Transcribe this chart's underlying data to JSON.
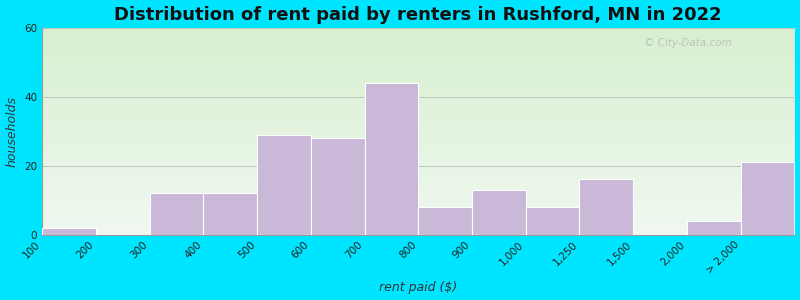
{
  "title": "Distribution of rent paid by renters in Rushford, MN in 2022",
  "xlabel": "rent paid ($)",
  "ylabel": "households",
  "tick_labels": [
    "100",
    "200",
    "300",
    "400",
    "500",
    "600",
    "700",
    "800",
    "900",
    "1,000",
    "1,250",
    "1,500",
    "2,000",
    "> 2,000"
  ],
  "bar_values": [
    2,
    0,
    12,
    12,
    29,
    28,
    44,
    8,
    13,
    8,
    16,
    0,
    4,
    21
  ],
  "bar_color": "#c9b8d8",
  "bar_edge_color": "#ffffff",
  "ylim": [
    0,
    60
  ],
  "yticks": [
    0,
    20,
    40,
    60
  ],
  "background_outer": "#00e5ff",
  "title_fontsize": 13,
  "axis_label_fontsize": 9,
  "tick_fontsize": 7.5,
  "watermark_text": "© City-Data.com",
  "bar_linewidth": 0.8
}
